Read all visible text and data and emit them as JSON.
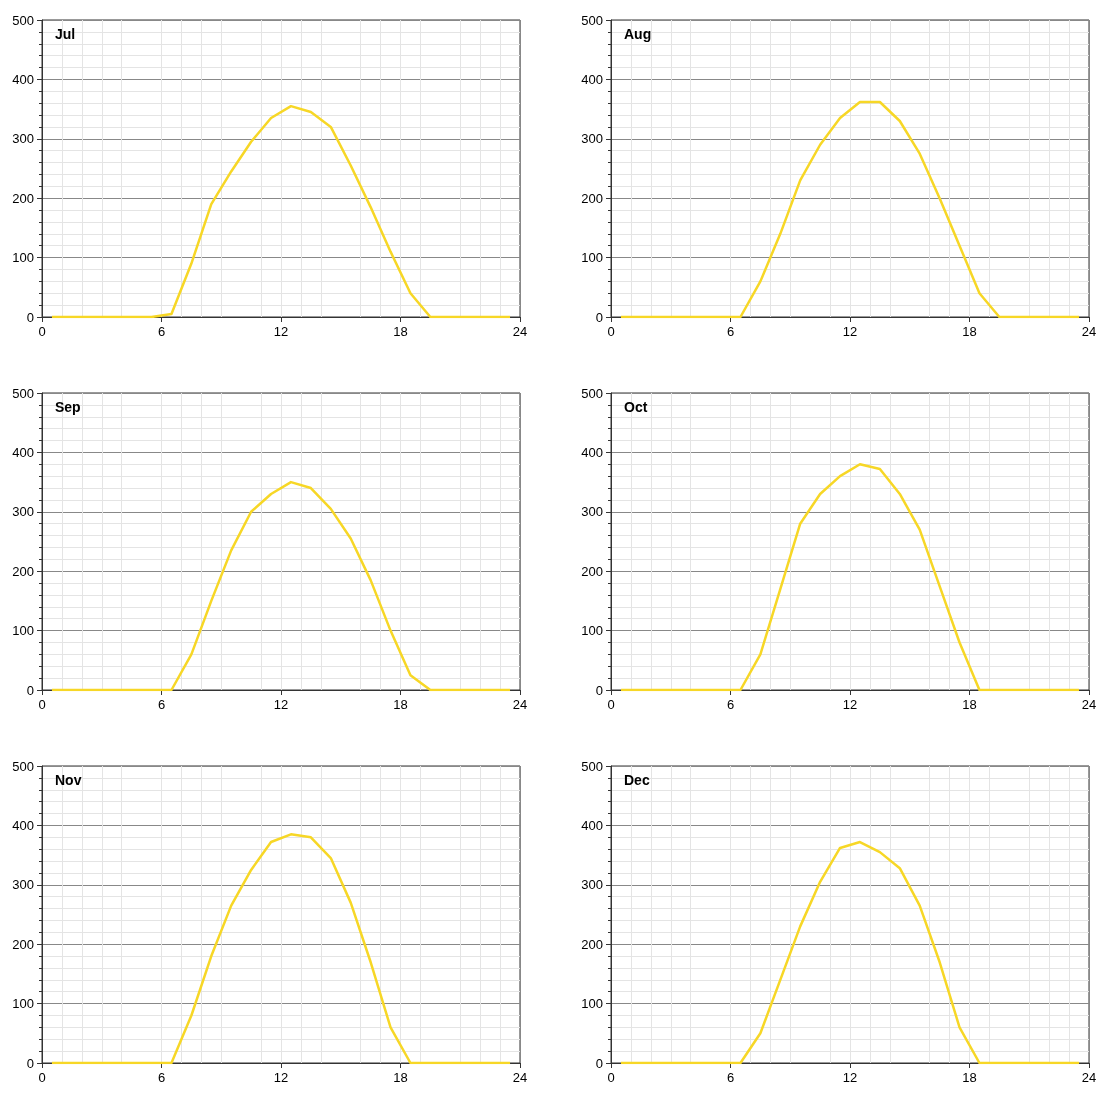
{
  "chart_data": [
    {
      "type": "line",
      "title": "Jul",
      "x": [
        0.5,
        1.5,
        2.5,
        3.5,
        4.5,
        5.5,
        6.5,
        7.5,
        8.5,
        9.5,
        10.5,
        11.5,
        12.5,
        13.5,
        14.5,
        15.5,
        16.5,
        17.5,
        18.5,
        19.5,
        20.5,
        21.5,
        22.5,
        23.5
      ],
      "series": [
        {
          "color": "#f7d726",
          "values": [
            0,
            0,
            0,
            0,
            0,
            0,
            5,
            90,
            190,
            245,
            295,
            335,
            355,
            345,
            320,
            255,
            185,
            110,
            40,
            0,
            0,
            0,
            0,
            0
          ]
        }
      ],
      "xlim": [
        0,
        24
      ],
      "xticks": [
        0,
        6,
        12,
        18,
        24
      ],
      "ylim": [
        0,
        500
      ],
      "yticks": [
        0,
        100,
        200,
        300,
        400,
        500
      ],
      "grid": true,
      "marker": "none",
      "line_style": "solid"
    },
    {
      "type": "line",
      "title": "Aug",
      "x": [
        0.5,
        1.5,
        2.5,
        3.5,
        4.5,
        5.5,
        6.5,
        7.5,
        8.5,
        9.5,
        10.5,
        11.5,
        12.5,
        13.5,
        14.5,
        15.5,
        16.5,
        17.5,
        18.5,
        19.5,
        20.5,
        21.5,
        22.5,
        23.5
      ],
      "series": [
        {
          "color": "#f7d726",
          "values": [
            0,
            0,
            0,
            0,
            0,
            0,
            0,
            60,
            140,
            230,
            290,
            335,
            362,
            362,
            330,
            275,
            200,
            120,
            40,
            0,
            0,
            0,
            0,
            0
          ]
        }
      ],
      "xlim": [
        0,
        24
      ],
      "xticks": [
        0,
        6,
        12,
        18,
        24
      ],
      "ylim": [
        0,
        500
      ],
      "yticks": [
        0,
        100,
        200,
        300,
        400,
        500
      ],
      "grid": true,
      "marker": "none",
      "line_style": "solid"
    },
    {
      "type": "line",
      "title": "Sep",
      "x": [
        0.5,
        1.5,
        2.5,
        3.5,
        4.5,
        5.5,
        6.5,
        7.5,
        8.5,
        9.5,
        10.5,
        11.5,
        12.5,
        13.5,
        14.5,
        15.5,
        16.5,
        17.5,
        18.5,
        19.5,
        20.5,
        21.5,
        22.5,
        23.5
      ],
      "series": [
        {
          "color": "#f7d726",
          "values": [
            0,
            0,
            0,
            0,
            0,
            0,
            0,
            60,
            150,
            235,
            300,
            330,
            350,
            340,
            305,
            255,
            185,
            100,
            25,
            0,
            0,
            0,
            0,
            0
          ]
        }
      ],
      "xlim": [
        0,
        24
      ],
      "xticks": [
        0,
        6,
        12,
        18,
        24
      ],
      "ylim": [
        0,
        500
      ],
      "yticks": [
        0,
        100,
        200,
        300,
        400,
        500
      ],
      "grid": true,
      "marker": "none",
      "line_style": "solid"
    },
    {
      "type": "line",
      "title": "Oct",
      "x": [
        0.5,
        1.5,
        2.5,
        3.5,
        4.5,
        5.5,
        6.5,
        7.5,
        8.5,
        9.5,
        10.5,
        11.5,
        12.5,
        13.5,
        14.5,
        15.5,
        16.5,
        17.5,
        18.5,
        19.5,
        20.5,
        21.5,
        22.5,
        23.5
      ],
      "series": [
        {
          "color": "#f7d726",
          "values": [
            0,
            0,
            0,
            0,
            0,
            0,
            0,
            60,
            170,
            280,
            330,
            360,
            380,
            372,
            330,
            270,
            175,
            80,
            0,
            0,
            0,
            0,
            0,
            0
          ]
        }
      ],
      "xlim": [
        0,
        24
      ],
      "xticks": [
        0,
        6,
        12,
        18,
        24
      ],
      "ylim": [
        0,
        500
      ],
      "yticks": [
        0,
        100,
        200,
        300,
        400,
        500
      ],
      "grid": true,
      "marker": "none",
      "line_style": "solid"
    },
    {
      "type": "line",
      "title": "Nov",
      "x": [
        0.5,
        1.5,
        2.5,
        3.5,
        4.5,
        5.5,
        6.5,
        7.5,
        8.5,
        9.5,
        10.5,
        11.5,
        12.5,
        13.5,
        14.5,
        15.5,
        16.5,
        17.5,
        18.5,
        19.5,
        20.5,
        21.5,
        22.5,
        23.5
      ],
      "series": [
        {
          "color": "#f7d726",
          "values": [
            0,
            0,
            0,
            0,
            0,
            0,
            0,
            80,
            180,
            265,
            325,
            372,
            385,
            380,
            345,
            270,
            170,
            60,
            0,
            0,
            0,
            0,
            0,
            0
          ]
        }
      ],
      "xlim": [
        0,
        24
      ],
      "xticks": [
        0,
        6,
        12,
        18,
        24
      ],
      "ylim": [
        0,
        500
      ],
      "yticks": [
        0,
        100,
        200,
        300,
        400,
        500
      ],
      "grid": true,
      "marker": "none",
      "line_style": "solid"
    },
    {
      "type": "line",
      "title": "Dec",
      "x": [
        0.5,
        1.5,
        2.5,
        3.5,
        4.5,
        5.5,
        6.5,
        7.5,
        8.5,
        9.5,
        10.5,
        11.5,
        12.5,
        13.5,
        14.5,
        15.5,
        16.5,
        17.5,
        18.5,
        19.5,
        20.5,
        21.5,
        22.5,
        23.5
      ],
      "series": [
        {
          "color": "#f7d726",
          "values": [
            0,
            0,
            0,
            0,
            0,
            0,
            0,
            50,
            140,
            230,
            305,
            362,
            372,
            355,
            328,
            265,
            170,
            60,
            0,
            0,
            0,
            0,
            0,
            0
          ]
        }
      ],
      "xlim": [
        0,
        24
      ],
      "xticks": [
        0,
        6,
        12,
        18,
        24
      ],
      "ylim": [
        0,
        500
      ],
      "yticks": [
        0,
        100,
        200,
        300,
        400,
        500
      ],
      "grid": true,
      "marker": "none",
      "line_style": "solid"
    }
  ]
}
